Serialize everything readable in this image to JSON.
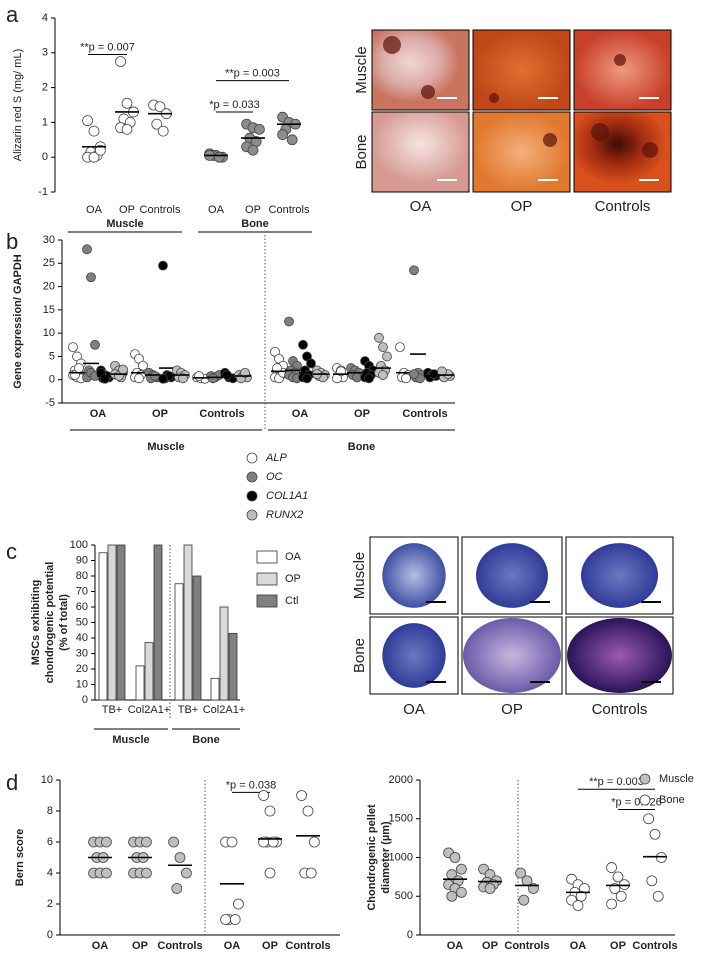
{
  "panels": [
    "a",
    "b",
    "c",
    "d"
  ],
  "images_a": {
    "rows": [
      "Muscle",
      "Bone"
    ],
    "cols": [
      "OA",
      "OP",
      "Controls"
    ]
  },
  "images_c": {
    "rows": [
      "Muscle",
      "Bone"
    ],
    "cols": [
      "OA",
      "OP",
      "Controls"
    ]
  },
  "chart_data": [
    {
      "type": "strip",
      "ylabel": [
        "Alizarin red S (mg/ mL)"
      ],
      "ylim": [
        -1,
        4
      ],
      "yticks": [
        -1,
        0,
        1,
        2,
        3,
        4
      ],
      "categories": [
        "OA",
        "OP",
        "Controls",
        "OA",
        "OP",
        "Controls"
      ],
      "groups": [
        "Muscle",
        "Bone"
      ],
      "series": [
        {
          "color": "#ffffff",
          "values": [
            [
              1.05,
              0.75,
              0.3,
              0.15,
              0.05,
              0.0,
              0.0,
              0.2
            ],
            [
              2.75,
              1.55,
              1.3,
              1.1,
              1.0,
              0.85,
              0.8
            ],
            [
              1.5,
              1.45,
              1.25,
              0.95,
              0.75
            ],
            null,
            null,
            null
          ],
          "means": [
            0.3,
            1.3,
            1.25,
            null,
            null,
            null
          ]
        },
        {
          "color": "#8c8c8c",
          "values": [
            null,
            null,
            null,
            [
              0.1,
              0.05,
              0.0,
              0.05,
              0.0,
              0.05
            ],
            [
              0.95,
              0.85,
              0.8,
              0.55,
              0.45,
              0.3,
              0.2
            ],
            [
              1.15,
              1.0,
              0.95,
              0.8,
              0.5,
              0.65
            ]
          ],
          "means": [
            null,
            null,
            null,
            0.05,
            0.55,
            0.95
          ]
        }
      ],
      "annotations": [
        "**p = 0.007",
        "*p = 0.033",
        "**p = 0.003"
      ]
    },
    {
      "type": "strip",
      "ylabel": [
        "Gene expression/ GAPDH"
      ],
      "ylim": [
        -5,
        30
      ],
      "yticks": [
        -5,
        0,
        5,
        10,
        15,
        20,
        25,
        30
      ],
      "categories": [
        "OA",
        "OP",
        "Controls",
        "OA",
        "OP",
        "Controls"
      ],
      "groups": [
        "Muscle",
        "Bone"
      ],
      "series": [
        {
          "name": "ALP",
          "color": "#ffffff",
          "values": [
            [
              7,
              5,
              3.5,
              2,
              1.5,
              1,
              0.5,
              0.3,
              1,
              2.5
            ],
            [
              5.5,
              4.5,
              3,
              1.5,
              1,
              0.5,
              0.3
            ],
            [
              0.5,
              0.3,
              0.2,
              0.8
            ],
            [
              6,
              4.5,
              3,
              2,
              1,
              0.5,
              0.3,
              1.5,
              2.5
            ],
            [
              2.5,
              2,
              1.5,
              1,
              0.5,
              0.3,
              1.8
            ],
            [
              7,
              1.5,
              1,
              0.5,
              0.3
            ]
          ],
          "means": [
            1.5,
            1.5,
            0.4,
            1.8,
            1.2,
            1.5
          ]
        },
        {
          "name": "OC",
          "color": "#7f7f7f",
          "values": [
            [
              28,
              22,
              7.5,
              2,
              1,
              0.5,
              1.5,
              0.8
            ],
            [
              1.5,
              1,
              0.5,
              0.3,
              0.8
            ],
            [
              0.8,
              0.5,
              1,
              0.3
            ],
            [
              12.5,
              4,
              3,
              2,
              1.5,
              1,
              0.5,
              0.3
            ],
            [
              2.5,
              2,
              1.5,
              1,
              0.5
            ],
            [
              23.5,
              1.5,
              1,
              0.5,
              0.3,
              1.2
            ]
          ],
          "means": [
            3.5,
            1,
            0.5,
            2,
            1.5,
            5.5
          ]
        },
        {
          "name": "COL1A1",
          "color": "#000000",
          "values": [
            [
              2,
              1,
              0.5,
              0.3,
              0.8,
              1.5,
              0.2
            ],
            [
              24.5,
              1,
              0.5,
              0.3,
              0.8,
              0.2
            ],
            [
              1.5,
              0.5,
              0.3,
              1
            ],
            [
              7.5,
              5,
              3.5,
              2,
              1,
              0.5,
              0.3
            ],
            [
              4,
              3,
              2,
              1.5,
              1,
              0.5,
              0.3
            ],
            [
              1.5,
              1,
              0.8,
              0.5,
              1.2
            ]
          ],
          "means": [
            0.8,
            2.5,
            0.8,
            1.5,
            1.5,
            0.8
          ]
        },
        {
          "name": "RUNX2",
          "color": "#bfbfbf",
          "values": [
            [
              3,
              2,
              1.5,
              1,
              0.5,
              1.2,
              0.8,
              2.2
            ],
            [
              2,
              1.5,
              1,
              0.5,
              0.3
            ],
            [
              1,
              0.8,
              0.5,
              0.3,
              1.5
            ],
            [
              2,
              1.5,
              1,
              0.8,
              0.5,
              1.2
            ],
            [
              9,
              7,
              5,
              3,
              2,
              1.5,
              1
            ],
            [
              1.5,
              1,
              0.8,
              0.5,
              1.2,
              1.8
            ]
          ],
          "means": [
            1.2,
            1,
            0.8,
            1.2,
            2.5,
            1
          ]
        }
      ]
    },
    {
      "type": "bar",
      "ylabel": [
        "MSCs exhibiting",
        "chondrogenic potential",
        "(% of total)"
      ],
      "ylim": [
        0,
        100
      ],
      "yticks": [
        0,
        10,
        20,
        30,
        40,
        50,
        60,
        70,
        80,
        90,
        100
      ],
      "categories": [
        "TB+",
        "Col2A1+",
        "TB+",
        "Col2A1+"
      ],
      "groups": [
        "Muscle",
        "Bone"
      ],
      "series": [
        {
          "name": "OA",
          "color": "#ffffff",
          "values": [
            95,
            22,
            75,
            14
          ]
        },
        {
          "name": "OP",
          "color": "#d9d9d9",
          "values": [
            100,
            37,
            100,
            60
          ]
        },
        {
          "name": "Ctl",
          "color": "#808080",
          "values": [
            100,
            100,
            80,
            43
          ]
        }
      ]
    },
    {
      "type": "strip",
      "ylabel": [
        "Bern score"
      ],
      "ylim": [
        0,
        10
      ],
      "yticks": [
        0,
        2,
        4,
        6,
        8,
        10
      ],
      "categories": [
        "OA",
        "OP",
        "Controls",
        "OA",
        "OP",
        "Controls"
      ],
      "series": [
        {
          "color": "#bfbfbf",
          "values": [
            [
              6,
              6,
              6,
              5,
              5,
              4,
              4,
              4
            ],
            [
              6,
              6,
              6,
              5,
              5,
              4,
              4,
              4
            ],
            [
              6,
              5,
              4,
              3
            ],
            null,
            null,
            null
          ],
          "means": [
            5,
            5,
            4.5,
            null,
            null,
            null
          ]
        },
        {
          "color": "#ffffff",
          "values": [
            null,
            null,
            null,
            [
              6,
              6,
              2,
              1,
              1,
              1
            ],
            [
              9,
              8,
              6,
              6,
              6,
              6,
              4
            ],
            [
              9,
              8,
              6,
              4,
              4
            ]
          ],
          "means": [
            null,
            null,
            null,
            3.3,
            6.2,
            6.4
          ]
        }
      ],
      "annotations": [
        "*p = 0.038"
      ]
    },
    {
      "type": "strip",
      "ylabel": [
        "Chondrogenic pellet",
        "diameter (µm)"
      ],
      "ylim": [
        0,
        2000
      ],
      "yticks": [
        0,
        500,
        1000,
        1500,
        2000
      ],
      "categories": [
        "OA",
        "OP",
        "Controls",
        "OA",
        "OP",
        "Controls"
      ],
      "series": [
        {
          "name": "Muscle",
          "color": "#bfbfbf",
          "values": [
            [
              1060,
              1000,
              850,
              780,
              700,
              650,
              600,
              550,
              500
            ],
            [
              850,
              780,
              700,
              680,
              650,
              620,
              600
            ],
            [
              800,
              700,
              600,
              450
            ],
            null,
            null,
            null
          ],
          "means": [
            720,
            690,
            640,
            null,
            null,
            null
          ]
        },
        {
          "name": "Bone",
          "color": "#ffffff",
          "values": [
            null,
            null,
            null,
            [
              720,
              650,
              600,
              550,
              500,
              450,
              380
            ],
            [
              870,
              750,
              650,
              600,
              500,
              400
            ],
            [
              1500,
              1300,
              1000,
              700,
              500
            ]
          ],
          "means": [
            null,
            null,
            null,
            550,
            640,
            1010
          ]
        }
      ],
      "annotations": [
        "**p = 0.003",
        "*p = 0.026"
      ]
    }
  ]
}
